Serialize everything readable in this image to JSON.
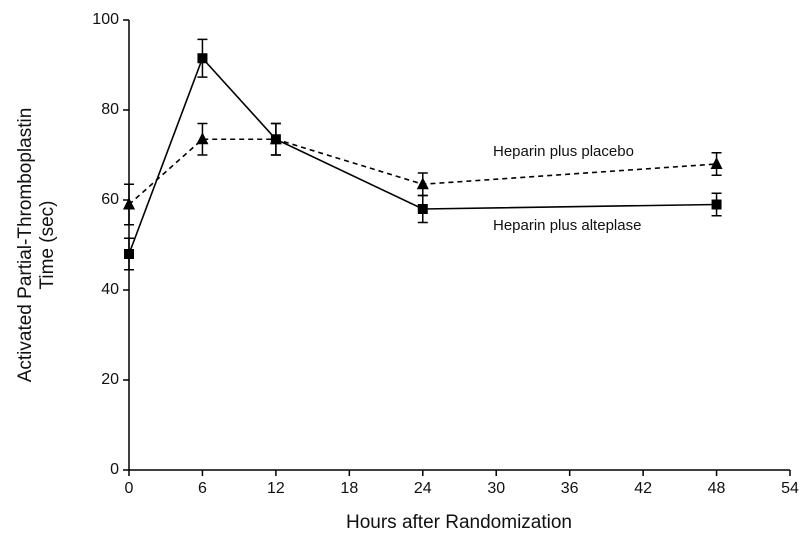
{
  "chart_data": {
    "type": "line",
    "xlabel": "Hours after Randomization",
    "ylabel": [
      "Activated Partial-Thromboplastin",
      "Time (sec)"
    ],
    "xlim": [
      0,
      54
    ],
    "xticks": [
      0,
      6,
      12,
      18,
      24,
      30,
      36,
      42,
      48,
      54
    ],
    "ylim": [
      0,
      100
    ],
    "yticks": [
      0,
      20,
      40,
      60,
      80,
      100
    ],
    "grid": false,
    "series": [
      {
        "name": "Heparin plus placebo",
        "color": "#000000",
        "line_style": "dashed",
        "marker": "triangle",
        "x": [
          0,
          6,
          12,
          24,
          48
        ],
        "values": [
          59,
          73.5,
          73.5,
          63.5,
          68
        ],
        "errors": [
          4.5,
          3.5,
          3.5,
          2.5,
          2.5
        ]
      },
      {
        "name": "Heparin plus alteplase",
        "color": "#000000",
        "line_style": "solid",
        "marker": "square",
        "x": [
          0,
          6,
          12,
          24,
          48
        ],
        "values": [
          48,
          91.5,
          73.5,
          58,
          59
        ],
        "errors": [
          3.5,
          4.2,
          3.5,
          3,
          2.5
        ]
      }
    ]
  }
}
